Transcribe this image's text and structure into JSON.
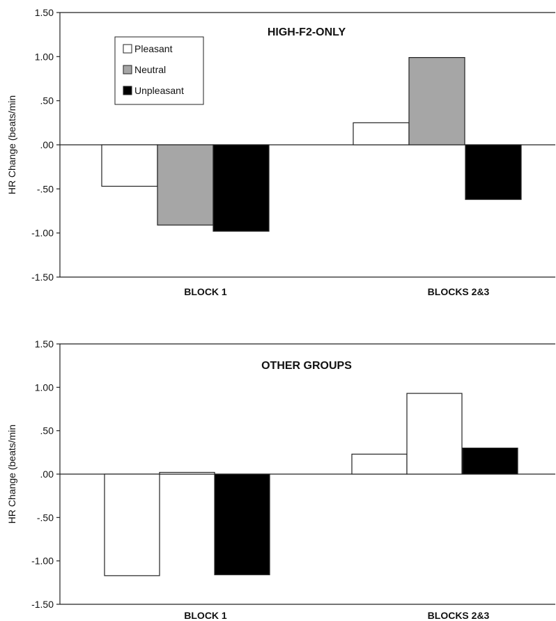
{
  "chart_data": [
    {
      "type": "bar",
      "title": "HIGH-F2-ONLY",
      "ylabel": "HR Change (beats/min",
      "ylim": [
        -1.5,
        1.5
      ],
      "yticks": [
        "1.50",
        "1.00",
        ".50",
        ".00",
        "-.50",
        "-1.00",
        "-1.50"
      ],
      "categories": [
        "BLOCK 1",
        "BLOCKS 2&3"
      ],
      "series": [
        {
          "name": "Pleasant",
          "color": "#ffffff",
          "values": [
            -0.47,
            0.25
          ]
        },
        {
          "name": "Neutral",
          "color": "#a6a6a6",
          "values": [
            -0.91,
            0.99
          ]
        },
        {
          "name": "Unpleasant",
          "color": "#000000",
          "values": [
            -0.98,
            -0.62
          ]
        }
      ],
      "legend": {
        "placement": "top-left",
        "entries": [
          "Pleasant",
          "Neutral",
          "Unpleasant"
        ]
      },
      "grid": false
    },
    {
      "type": "bar",
      "title": "OTHER GROUPS",
      "ylabel": "HR Change (beats/min",
      "ylim": [
        -1.5,
        1.5
      ],
      "yticks": [
        "1.50",
        "1.00",
        ".50",
        ".00",
        "-.50",
        "-1.00",
        "-1.50"
      ],
      "categories": [
        "BLOCK 1",
        "BLOCKS 2&3"
      ],
      "series": [
        {
          "name": "Pleasant",
          "color": "#ffffff",
          "values": [
            -1.17,
            0.23
          ]
        },
        {
          "name": "Neutral",
          "color": "#ffffff",
          "values": [
            0.02,
            0.93
          ]
        },
        {
          "name": "Unpleasant",
          "color": "#000000",
          "values": [
            -1.16,
            0.3
          ]
        }
      ],
      "grid": false
    }
  ]
}
